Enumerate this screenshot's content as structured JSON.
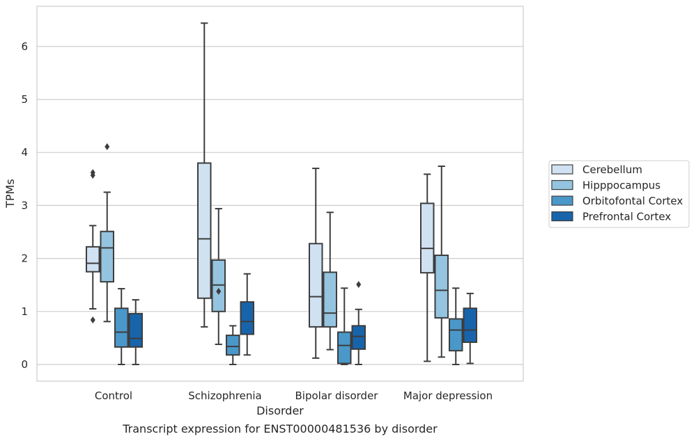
{
  "chart_data": {
    "type": "boxplot",
    "caption": "Transcript expression for ENST00000481536 by disorder",
    "xlabel": "Disorder",
    "ylabel": "TPMs",
    "ylim": [
      -0.3,
      6.75
    ],
    "yticks": [
      0,
      1,
      2,
      3,
      4,
      5,
      6
    ],
    "grid": true,
    "legend_position": "right",
    "categories": [
      "Control",
      "Schizophrenia",
      "Bipolar disorder",
      "Major depression"
    ],
    "series": [
      {
        "name": "Cerebellum",
        "color": "#d0e1f2",
        "boxes": [
          {
            "whisker_low": 1.05,
            "q1": 1.75,
            "median": 1.91,
            "q3": 2.22,
            "whisker_high": 2.62,
            "outliers": [
              0.84,
              3.57,
              3.62
            ]
          },
          {
            "whisker_low": 0.71,
            "q1": 1.25,
            "median": 2.37,
            "q3": 3.8,
            "whisker_high": 6.44,
            "outliers": []
          },
          {
            "whisker_low": 0.12,
            "q1": 0.71,
            "median": 1.28,
            "q3": 2.28,
            "whisker_high": 3.7,
            "outliers": []
          },
          {
            "whisker_low": 0.06,
            "q1": 1.73,
            "median": 2.19,
            "q3": 3.04,
            "whisker_high": 3.59,
            "outliers": []
          }
        ]
      },
      {
        "name": "Hipppocampus",
        "color": "#94c4df",
        "boxes": [
          {
            "whisker_low": 0.81,
            "q1": 1.56,
            "median": 2.2,
            "q3": 2.51,
            "whisker_high": 3.25,
            "outliers": [
              4.11
            ]
          },
          {
            "whisker_low": 0.38,
            "q1": 1.0,
            "median": 1.5,
            "q3": 1.97,
            "whisker_high": 2.94,
            "outliers": [
              1.38
            ]
          },
          {
            "whisker_low": 0.28,
            "q1": 0.71,
            "median": 0.97,
            "q3": 1.74,
            "whisker_high": 2.87,
            "outliers": []
          },
          {
            "whisker_low": 0.14,
            "q1": 0.88,
            "median": 1.4,
            "q3": 2.06,
            "whisker_high": 3.74,
            "outliers": []
          }
        ]
      },
      {
        "name": "Orbitofontal Cortex",
        "color": "#4a98c9",
        "boxes": [
          {
            "whisker_low": 0.0,
            "q1": 0.33,
            "median": 0.61,
            "q3": 1.06,
            "whisker_high": 1.43,
            "outliers": []
          },
          {
            "whisker_low": 0.0,
            "q1": 0.18,
            "median": 0.34,
            "q3": 0.55,
            "whisker_high": 0.73,
            "outliers": []
          },
          {
            "whisker_low": 0.0,
            "q1": 0.02,
            "median": 0.36,
            "q3": 0.61,
            "whisker_high": 1.44,
            "outliers": []
          },
          {
            "whisker_low": 0.0,
            "q1": 0.26,
            "median": 0.65,
            "q3": 0.86,
            "whisker_high": 1.44,
            "outliers": []
          }
        ]
      },
      {
        "name": "Prefrontal Cortex",
        "color": "#1764ab",
        "boxes": [
          {
            "whisker_low": 0.0,
            "q1": 0.33,
            "median": 0.49,
            "q3": 0.96,
            "whisker_high": 1.22,
            "outliers": []
          },
          {
            "whisker_low": 0.18,
            "q1": 0.57,
            "median": 0.81,
            "q3": 1.18,
            "whisker_high": 1.71,
            "outliers": []
          },
          {
            "whisker_low": 0.0,
            "q1": 0.29,
            "median": 0.53,
            "q3": 0.73,
            "whisker_high": 1.04,
            "outliers": [
              1.51
            ]
          },
          {
            "whisker_low": 0.02,
            "q1": 0.42,
            "median": 0.65,
            "q3": 1.06,
            "whisker_high": 1.34,
            "outliers": []
          }
        ]
      }
    ]
  }
}
